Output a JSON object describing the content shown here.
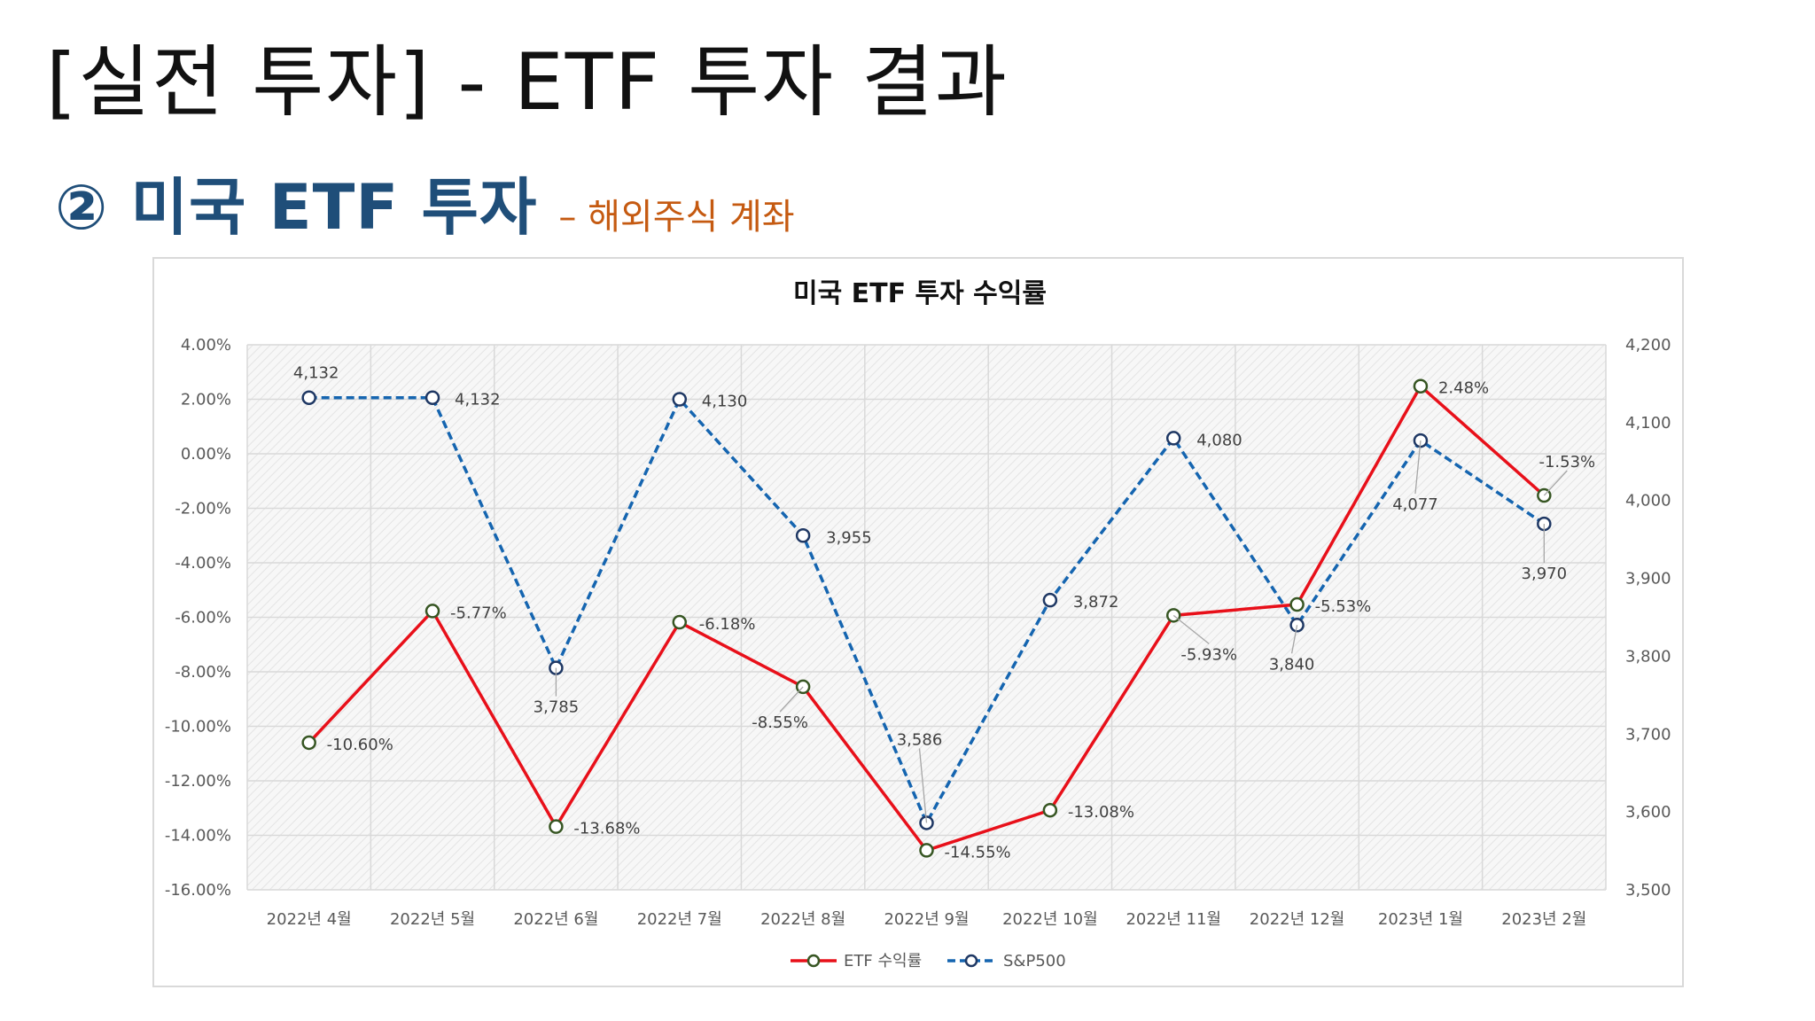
{
  "slide": {
    "title": "[실전 투자] - ETF 투자 결과",
    "section_title": "② 미국 ETF 투자",
    "section_note": "– 해외주식 계좌"
  },
  "colors": {
    "etf_line": "#e8101a",
    "etf_marker_stroke": "#375623",
    "sp_line": "#1565b0",
    "sp_marker_stroke": "#1f3864",
    "grid": "#d9d9d9",
    "plot_bg": "#f2f2f2"
  },
  "chart_data": {
    "type": "line",
    "title": "미국 ETF 투자 수익률",
    "categories": [
      "2022년 4월",
      "2022년 5월",
      "2022년 6월",
      "2022년 7월",
      "2022년 8월",
      "2022년 9월",
      "2022년 10월",
      "2022년 11월",
      "2022년 12월",
      "2023년 1월",
      "2023년 2월"
    ],
    "y_left": {
      "min": -16,
      "max": 4,
      "step": 2,
      "ticks": [
        "4.00%",
        "2.00%",
        "0.00%",
        "-2.00%",
        "-4.00%",
        "-6.00%",
        "-8.00%",
        "-10.00%",
        "-12.00%",
        "-14.00%",
        "-16.00%"
      ]
    },
    "y_right": {
      "min": 3500,
      "max": 4200,
      "step": 100,
      "ticks": [
        "4,200",
        "4,100",
        "4,000",
        "3,900",
        "3,800",
        "3,700",
        "3,600",
        "3,500"
      ]
    },
    "grid": true,
    "legend_position": "bottom",
    "series": [
      {
        "name": "ETF 수익률",
        "axis": "left",
        "style": "solid",
        "values": [
          -10.6,
          -5.77,
          -13.68,
          -6.18,
          -8.55,
          -14.55,
          -13.08,
          -5.93,
          -5.53,
          2.48,
          -1.53
        ],
        "labels": [
          "-10.60%",
          "-5.77%",
          "-13.68%",
          "-6.18%",
          "-8.55%",
          "-14.55%",
          "-13.08%",
          "-5.93%",
          "-5.53%",
          "2.48%",
          "-1.53%"
        ]
      },
      {
        "name": "S&P500",
        "axis": "right",
        "style": "dashed",
        "values": [
          4132,
          4132,
          3785,
          4130,
          3955,
          3586,
          3872,
          4080,
          3840,
          4077,
          3970
        ],
        "labels": [
          "4,132",
          "4,132",
          "3,785",
          "4,130",
          "3,955",
          "3,586",
          "3,872",
          "4,080",
          "3,840",
          "4,077",
          "3,970"
        ]
      }
    ]
  }
}
